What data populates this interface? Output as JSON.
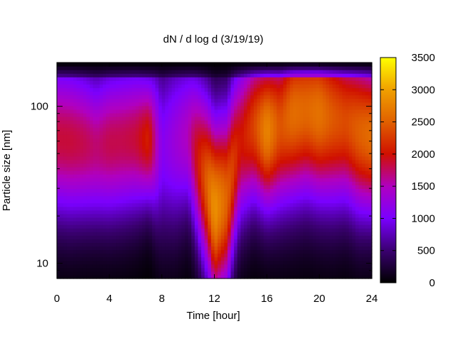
{
  "chart_data": {
    "type": "heatmap",
    "title": "dN / d log d (3/19/19)",
    "xlabel": "Time [hour]",
    "ylabel": "Particle size [nm]",
    "xlim": [
      0,
      24
    ],
    "ylim": [
      8.0,
      190
    ],
    "y_scale": "log",
    "x_ticks": [
      0,
      4,
      8,
      12,
      16,
      20,
      24
    ],
    "y_ticks": [
      10,
      100
    ],
    "colorbar": {
      "range": [
        0,
        3500
      ],
      "ticks": [
        0,
        500,
        1000,
        1500,
        2000,
        2500,
        3000,
        3500
      ],
      "colormap": "black-purple-red-orange-yellow",
      "stops": [
        "#000000",
        "#3a0070",
        "#7a00ff",
        "#b000c0",
        "#d01000",
        "#e06000",
        "#f0a000",
        "#ffff00"
      ]
    },
    "x": [
      0,
      1,
      2,
      3,
      4,
      5,
      6,
      7,
      8,
      9,
      10,
      11,
      12,
      13,
      14,
      15,
      16,
      17,
      18,
      19,
      20,
      21,
      22,
      23,
      24
    ],
    "series": [
      {
        "time": 0,
        "peak_size_nm": 62,
        "peak_value": 1850,
        "width": 0.36
      },
      {
        "time": 1,
        "peak_size_nm": 60,
        "peak_value": 1850,
        "width": 0.36
      },
      {
        "time": 2,
        "peak_size_nm": 58,
        "peak_value": 1800,
        "width": 0.35
      },
      {
        "time": 3,
        "peak_size_nm": 55,
        "peak_value": 1700,
        "width": 0.34
      },
      {
        "time": 4,
        "peak_size_nm": 58,
        "peak_value": 1800,
        "width": 0.35
      },
      {
        "time": 5,
        "peak_size_nm": 60,
        "peak_value": 1800,
        "width": 0.35
      },
      {
        "time": 6,
        "peak_size_nm": 62,
        "peak_value": 1850,
        "width": 0.34
      },
      {
        "time": 7,
        "peak_size_nm": 62,
        "peak_value": 2100,
        "width": 0.3
      },
      {
        "time": 8,
        "peak_size_nm": 55,
        "peak_value": 1100,
        "width": 0.4
      },
      {
        "time": 9,
        "peak_size_nm": 60,
        "peak_value": 1300,
        "width": 0.4
      },
      {
        "time": 10,
        "peak_size_nm": 65,
        "peak_value": 1500,
        "width": 0.36
      },
      {
        "time": 11,
        "peak_size_nm": 40,
        "peak_value": 2200,
        "width": 0.4
      },
      {
        "time": 12,
        "peak_size_nm": 22,
        "peak_value": 2900,
        "width": 0.42
      },
      {
        "time": 13,
        "peak_size_nm": 26,
        "peak_value": 2500,
        "width": 0.42
      },
      {
        "time": 14,
        "peak_size_nm": 60,
        "peak_value": 2000,
        "width": 0.38
      },
      {
        "time": 15,
        "peak_size_nm": 75,
        "peak_value": 2300,
        "width": 0.36
      },
      {
        "time": 16,
        "peak_size_nm": 70,
        "peak_value": 2800,
        "width": 0.36
      },
      {
        "time": 17,
        "peak_size_nm": 75,
        "peak_value": 2400,
        "width": 0.38
      },
      {
        "time": 18,
        "peak_size_nm": 90,
        "peak_value": 2600,
        "width": 0.4
      },
      {
        "time": 19,
        "peak_size_nm": 95,
        "peak_value": 2550,
        "width": 0.4
      },
      {
        "time": 20,
        "peak_size_nm": 90,
        "peak_value": 2650,
        "width": 0.4
      },
      {
        "time": 21,
        "peak_size_nm": 85,
        "peak_value": 2450,
        "width": 0.4
      },
      {
        "time": 22,
        "peak_size_nm": 80,
        "peak_value": 2350,
        "width": 0.38
      },
      {
        "time": 23,
        "peak_size_nm": 70,
        "peak_value": 2500,
        "width": 0.38
      },
      {
        "time": 24,
        "peak_size_nm": 65,
        "peak_value": 2600,
        "width": 0.36
      }
    ]
  }
}
